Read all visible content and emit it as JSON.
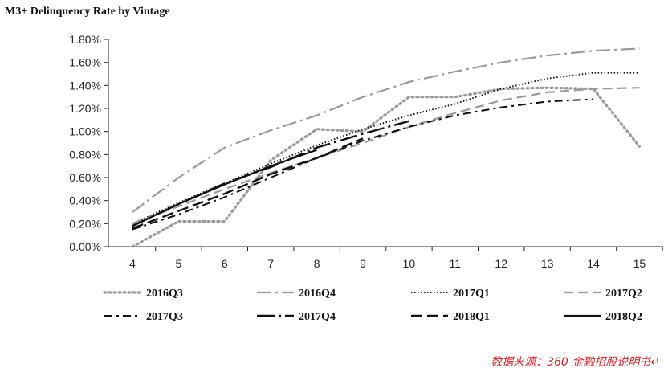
{
  "chart_data": {
    "type": "line",
    "title": "M3+ Delinquency Rate by Vintage",
    "xlabel": "",
    "ylabel": "",
    "x": [
      "4",
      "5",
      "6",
      "7",
      "8",
      "9",
      "10",
      "11",
      "12",
      "13",
      "14",
      "15"
    ],
    "y_ticks": [
      "0.00%",
      "0.20%",
      "0.40%",
      "0.60%",
      "0.80%",
      "1.00%",
      "1.20%",
      "1.40%",
      "1.60%",
      "1.80%"
    ],
    "ylim": [
      0,
      1.8
    ],
    "y_unit": "%",
    "grid": false,
    "legend_position": "bottom",
    "series": [
      {
        "name": "2016Q3",
        "color": "#9a9a9a",
        "dash": "dotted-thick",
        "values": [
          0.0,
          0.22,
          0.22,
          0.75,
          1.02,
          1.0,
          1.3,
          1.3,
          1.37,
          1.38,
          1.37,
          0.87
        ]
      },
      {
        "name": "2016Q4",
        "color": "#9a9a9a",
        "dash": "dash-dot-long",
        "values": [
          0.3,
          0.6,
          0.86,
          1.01,
          1.14,
          1.3,
          1.43,
          1.52,
          1.6,
          1.66,
          1.7,
          1.72
        ]
      },
      {
        "name": "2017Q1",
        "color": "#111111",
        "dash": "dotted",
        "values": [
          0.2,
          0.38,
          0.55,
          0.72,
          0.88,
          1.02,
          1.14,
          1.24,
          1.37,
          1.46,
          1.51,
          1.51
        ]
      },
      {
        "name": "2017Q2",
        "color": "#9a9a9a",
        "dash": "dashed",
        "values": [
          0.2,
          0.35,
          0.5,
          0.64,
          0.77,
          0.9,
          1.04,
          1.16,
          1.27,
          1.34,
          1.37,
          1.38
        ]
      },
      {
        "name": "2017Q3",
        "color": "#111111",
        "dash": "dash-dot",
        "values": [
          0.15,
          0.28,
          0.43,
          0.6,
          0.77,
          0.92,
          1.04,
          1.14,
          1.21,
          1.26,
          1.28,
          null
        ]
      },
      {
        "name": "2017Q4",
        "color": "#111111",
        "dash": "long-dash-dot",
        "values": [
          0.18,
          0.37,
          0.55,
          0.69,
          0.86,
          0.98,
          1.09,
          null,
          null,
          null,
          null,
          null
        ]
      },
      {
        "name": "2018Q1",
        "color": "#111111",
        "dash": "long-dash",
        "values": [
          0.16,
          0.31,
          0.46,
          0.63,
          0.77,
          0.94,
          null,
          null,
          null,
          null,
          null,
          null
        ]
      },
      {
        "name": "2018Q2",
        "color": "#111111",
        "dash": "solid",
        "values": [
          0.18,
          0.37,
          0.54,
          0.7,
          0.84,
          null,
          null,
          null,
          null,
          null,
          null,
          null
        ]
      }
    ]
  },
  "source_note": "数据来源：360 金融招股说明书↵"
}
